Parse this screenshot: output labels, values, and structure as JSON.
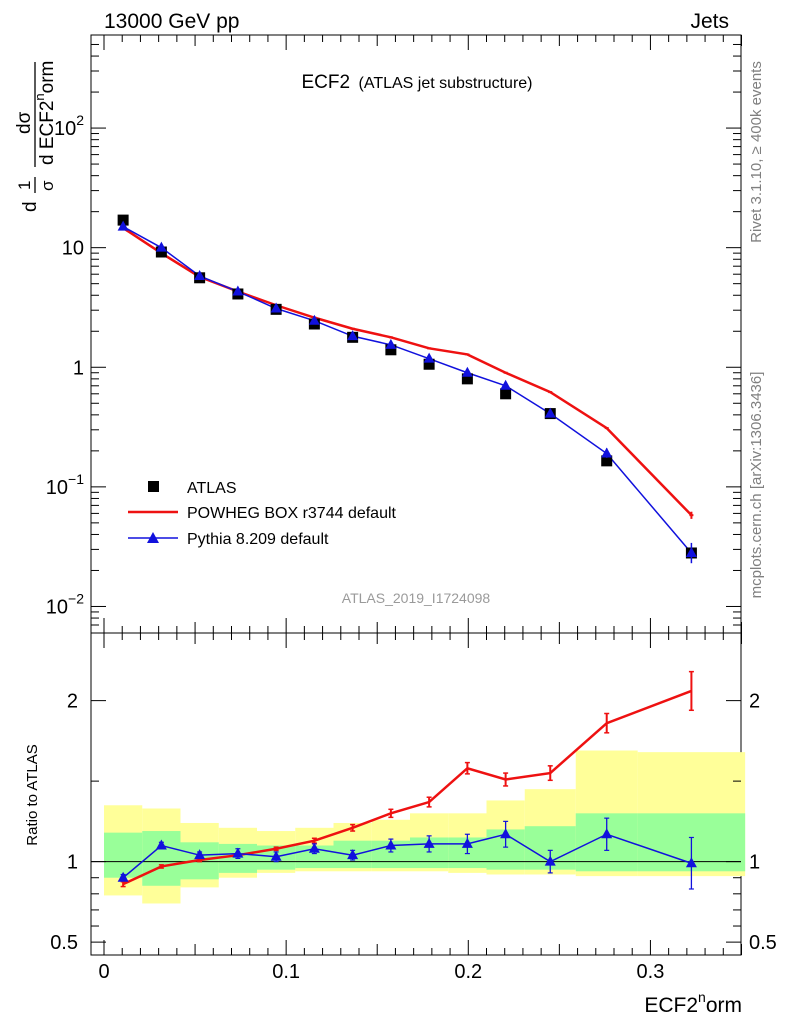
{
  "header": {
    "left": "13000 GeV pp",
    "right": "Jets"
  },
  "side_labels": {
    "top": "Rivet 3.1.10, ≥ 400k events",
    "bottom": "mcplots.cern.ch [arXiv:1306.3436]"
  },
  "plot_title": {
    "main": "ECF2",
    "sub": "(ATLAS jet substructure)"
  },
  "watermark": "ATLAS_2019_I1724098",
  "ylabel_main": {
    "frac1": "1",
    "frac1_den": "σ",
    "frac2_num": "dσ",
    "frac2_den_pre": "d ECF2",
    "frac2_sup": "n",
    "frac2_den_post": "orm",
    "lead": "d"
  },
  "ylabel_ratio": "Ratio to ATLAS",
  "xlabel": {
    "pre": "ECF2",
    "sup": "n",
    "post": "orm"
  },
  "colors": {
    "atlas": "#000000",
    "powheg": "#ee1111",
    "pythia": "#1111dd",
    "band_outer": "#ffff99",
    "band_inner": "#99ff99"
  },
  "chart_data": {
    "type": "line",
    "x_ticks": [
      "0",
      "0.1",
      "0.2",
      "0.3"
    ],
    "xlim": [
      0,
      0.35
    ],
    "main": {
      "yscale": "log",
      "ylim": [
        0.006,
        600
      ],
      "y_ticks": [
        {
          "value": 0.01,
          "base": "10",
          "exp": "−2"
        },
        {
          "value": 0.1,
          "base": "10",
          "exp": "−1"
        },
        {
          "value": 1,
          "base": "1",
          "exp": ""
        },
        {
          "value": 10,
          "base": "10",
          "exp": ""
        },
        {
          "value": 100,
          "base": "10",
          "exp": "2"
        }
      ],
      "x": [
        0.0105,
        0.0315,
        0.0525,
        0.0735,
        0.0945,
        0.1155,
        0.1365,
        0.1575,
        0.1785,
        0.1995,
        0.2205,
        0.245,
        0.276,
        0.3225
      ],
      "series": [
        {
          "name": "ATLAS",
          "values": [
            17.0,
            9.2,
            5.6,
            4.1,
            3.05,
            2.3,
            1.78,
            1.4,
            1.06,
            0.8,
            0.6,
            0.41,
            0.165,
            0.028
          ]
        },
        {
          "name": "POWHEG BOX r3744 default",
          "values": [
            14.6,
            9.0,
            5.7,
            4.3,
            3.3,
            2.6,
            2.1,
            1.78,
            1.44,
            1.28,
            0.9,
            0.62,
            0.31,
            0.058
          ]
        },
        {
          "name": "Pythia 8.209 default",
          "values": [
            15.0,
            10.0,
            5.8,
            4.3,
            3.1,
            2.45,
            1.82,
            1.54,
            1.18,
            0.9,
            0.7,
            0.41,
            0.19,
            0.028
          ]
        }
      ]
    },
    "ratio": {
      "ylim": [
        0.42,
        2.42
      ],
      "y_ticks": [
        "0.5",
        "1",
        "2"
      ],
      "y_tick_values": [
        0.5,
        1,
        2
      ],
      "bins": [
        [
          0,
          0.021
        ],
        [
          0.021,
          0.042
        ],
        [
          0.042,
          0.063
        ],
        [
          0.063,
          0.084
        ],
        [
          0.084,
          0.105
        ],
        [
          0.105,
          0.126
        ],
        [
          0.126,
          0.147
        ],
        [
          0.147,
          0.168
        ],
        [
          0.168,
          0.189
        ],
        [
          0.189,
          0.21
        ],
        [
          0.21,
          0.231
        ],
        [
          0.231,
          0.259
        ],
        [
          0.259,
          0.293
        ],
        [
          0.293,
          0.352
        ]
      ],
      "band_outer": [
        [
          0.79,
          1.35
        ],
        [
          0.74,
          1.33
        ],
        [
          0.84,
          1.24
        ],
        [
          0.9,
          1.21
        ],
        [
          0.93,
          1.19
        ],
        [
          0.94,
          1.21
        ],
        [
          0.94,
          1.24
        ],
        [
          0.94,
          1.26
        ],
        [
          0.94,
          1.3
        ],
        [
          0.93,
          1.3
        ],
        [
          0.92,
          1.38
        ],
        [
          0.92,
          1.45
        ],
        [
          0.91,
          1.69
        ],
        [
          0.91,
          1.68
        ]
      ],
      "band_inner": [
        [
          0.9,
          1.18
        ],
        [
          0.85,
          1.19
        ],
        [
          0.89,
          1.12
        ],
        [
          0.93,
          1.11
        ],
        [
          0.95,
          1.1
        ],
        [
          0.96,
          1.1
        ],
        [
          0.96,
          1.13
        ],
        [
          0.96,
          1.13
        ],
        [
          0.96,
          1.15
        ],
        [
          0.96,
          1.15
        ],
        [
          0.95,
          1.2
        ],
        [
          0.95,
          1.22
        ],
        [
          0.94,
          1.3
        ],
        [
          0.94,
          1.3
        ]
      ],
      "series": [
        {
          "name": "POWHEG BOX r3744 default",
          "values": [
            0.86,
            0.97,
            1.01,
            1.04,
            1.08,
            1.13,
            1.21,
            1.3,
            1.37,
            1.58,
            1.51,
            1.55,
            1.86,
            2.06
          ],
          "errors": [
            0.015,
            0.01,
            0.01,
            0.01,
            0.01,
            0.015,
            0.02,
            0.025,
            0.03,
            0.035,
            0.04,
            0.045,
            0.06,
            0.12
          ]
        },
        {
          "name": "Pythia 8.209 default",
          "values": [
            0.9,
            1.1,
            1.04,
            1.05,
            1.03,
            1.08,
            1.04,
            1.1,
            1.11,
            1.11,
            1.17,
            1.0,
            1.17,
            0.99
          ],
          "errors": [
            0.02,
            0.02,
            0.02,
            0.03,
            0.03,
            0.03,
            0.03,
            0.04,
            0.05,
            0.06,
            0.08,
            0.07,
            0.1,
            0.16
          ]
        }
      ]
    }
  }
}
